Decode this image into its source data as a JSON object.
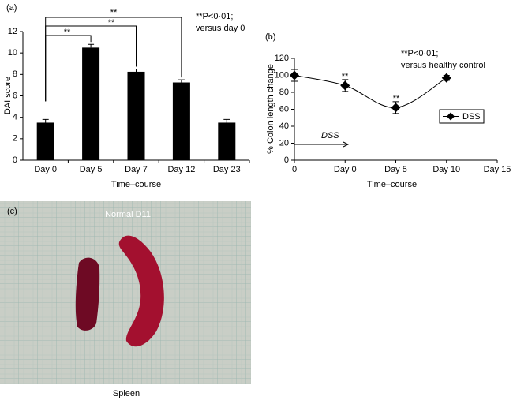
{
  "chart_data": [
    {
      "type": "bar",
      "panel_label": "(a)",
      "y_label": "DAI score",
      "x_label": "Time–course",
      "categories": [
        "Day 0",
        "Day 5",
        "Day 7",
        "Day 12",
        "Day 23"
      ],
      "values": [
        3.5,
        10.5,
        8.25,
        7.25,
        3.5
      ],
      "errors": [
        0.3,
        0.3,
        0.25,
        0.25,
        0.3
      ],
      "color": "#000000",
      "ylim": [
        0,
        12
      ],
      "yticks": [
        0,
        2,
        4,
        6,
        8,
        10,
        12
      ],
      "annotations": [
        "**",
        "**",
        "**",
        "**P<0·01;",
        "versus day 0"
      ]
    },
    {
      "type": "line",
      "panel_label": "(b)",
      "y_label": "% Colon length change",
      "x_label": "Time–course",
      "categories": [
        "0",
        "Day 0",
        "Day 5",
        "Day 10",
        "Day 15"
      ],
      "series": [
        {
          "name": "DSS",
          "color": "#000000",
          "values": [
            100,
            88,
            62,
            97,
            null
          ],
          "errors": [
            7,
            7,
            7,
            3,
            null
          ]
        }
      ],
      "ylim": [
        0,
        120
      ],
      "yticks": [
        0,
        20,
        40,
        60,
        80,
        100,
        120
      ],
      "legend": "right",
      "annotations": [
        "**",
        "**",
        "**P<0·01;",
        "versus healthy control",
        "DSS"
      ]
    }
  ],
  "photo": {
    "label": "(c)",
    "caption": "Normal  D11",
    "footer": "Spleen"
  }
}
